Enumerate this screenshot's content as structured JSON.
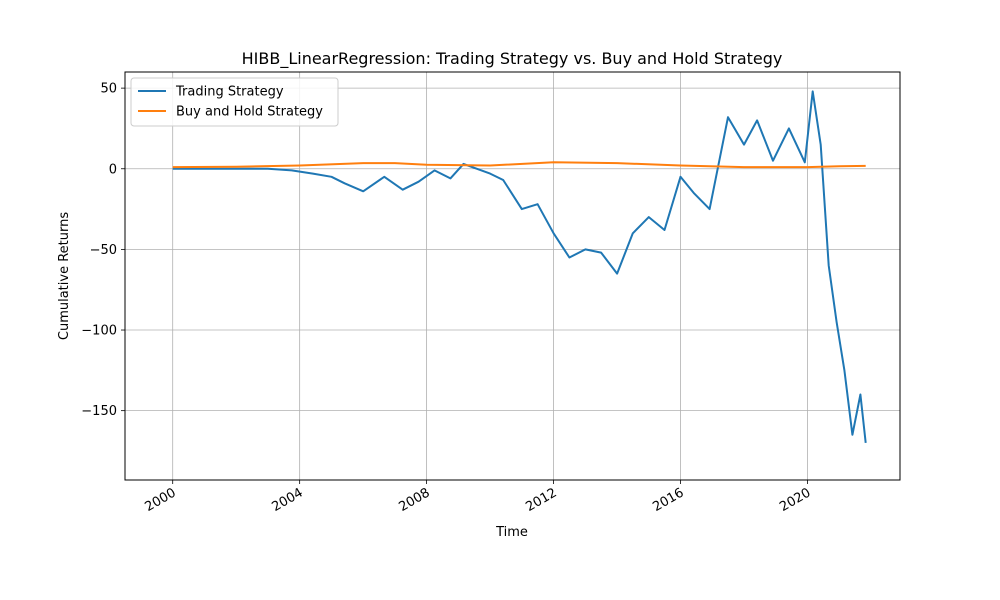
{
  "chart_data": {
    "type": "line",
    "title": "HIBB_LinearRegression: Trading Strategy vs. Buy and Hold Strategy",
    "xlabel": "Time",
    "ylabel": "Cumulative Returns",
    "xlim": [
      "1998-07-01",
      "2022-12-01"
    ],
    "ylim": [
      -193,
      60
    ],
    "x_ticks": [
      "2000",
      "2004",
      "2008",
      "2012",
      "2016",
      "2020"
    ],
    "y_ticks": [
      50,
      0,
      -50,
      -100,
      -150
    ],
    "y_tick_labels": [
      "50",
      "0",
      "−50",
      "−100",
      "−150"
    ],
    "grid": true,
    "legend_position": "top-left",
    "series": [
      {
        "name": "Trading Strategy",
        "color": "#1f77b4",
        "x": [
          "2000-01-01",
          "2001-01-01",
          "2002-01-01",
          "2003-01-01",
          "2003-10-01",
          "2004-06-01",
          "2005-01-01",
          "2005-06-01",
          "2006-01-01",
          "2006-09-01",
          "2007-04-01",
          "2007-10-01",
          "2008-04-01",
          "2008-10-01",
          "2009-03-01",
          "2010-01-01",
          "2010-06-01",
          "2011-01-01",
          "2011-07-01",
          "2012-01-01",
          "2012-07-01",
          "2013-01-01",
          "2013-07-01",
          "2014-01-01",
          "2014-07-01",
          "2015-01-01",
          "2015-07-01",
          "2016-01-01",
          "2016-06-01",
          "2016-12-01",
          "2017-07-01",
          "2018-01-01",
          "2018-06-01",
          "2018-12-01",
          "2019-06-01",
          "2019-12-01",
          "2020-03-01",
          "2020-06-01",
          "2020-09-01",
          "2020-12-01",
          "2021-03-01",
          "2021-06-01",
          "2021-09-01",
          "2021-11-01"
        ],
        "values": [
          0,
          0,
          0,
          0,
          -1,
          -3,
          -5,
          -9,
          -14,
          -5,
          -13,
          -8,
          -1,
          -6,
          3,
          -3,
          -7,
          -25,
          -22,
          -40,
          -55,
          -50,
          -52,
          -65,
          -40,
          -30,
          -38,
          -5,
          -15,
          -25,
          32,
          15,
          30,
          5,
          25,
          4,
          48,
          15,
          -60,
          -95,
          -125,
          -165,
          -140,
          -170
        ]
      },
      {
        "name": "Buy and Hold Strategy",
        "color": "#ff7f0e",
        "x": [
          "2000-01-01",
          "2002-01-01",
          "2004-01-01",
          "2006-01-01",
          "2007-01-01",
          "2008-01-01",
          "2010-01-01",
          "2012-01-01",
          "2014-01-01",
          "2016-01-01",
          "2018-01-01",
          "2020-01-01",
          "2021-01-01",
          "2021-11-01"
        ],
        "values": [
          1,
          1.2,
          2,
          3.5,
          3.5,
          2.5,
          2,
          4,
          3.5,
          2,
          1,
          1,
          1.5,
          1.8
        ]
      }
    ]
  }
}
